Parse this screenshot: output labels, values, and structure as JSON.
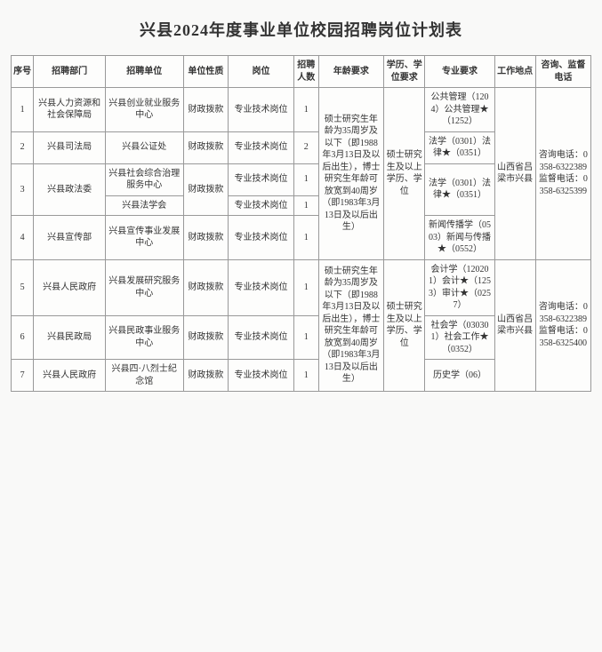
{
  "title": "兴县2024年度事业单位校园招聘岗位计划表",
  "headers": {
    "seq": "序号",
    "dept": "招聘部门",
    "unit": "招聘单位",
    "nature": "单位性质",
    "post": "岗位",
    "count": "招聘人数",
    "age": "年龄要求",
    "degree": "学历、学位要求",
    "major": "专业要求",
    "place": "工作地点",
    "phone": "咨询、监督电话"
  },
  "shared": {
    "nature": "财政拨款",
    "post": "专业技术岗位",
    "age_a": "硕士研究生年龄为35周岁及以下（即1988年3月13日及以后出生），博士研究生年龄可放宽到40周岁（即1983年3月13日及以后出生）",
    "age_b": "硕士研究生年龄为35周岁及以下（即1988年3月13日及以后出生），博士研究生年龄可放宽到40周岁（即1983年3月13日及以后出生）",
    "degree": "硕士研究生及以上学历、学位",
    "place": "山西省吕梁市兴县",
    "phone_a": "咨询电话：0358-6322389 监督电话：0358-6325399",
    "phone_b": "咨询电话：0358-6322389 监督电话：0358-6325400"
  },
  "rows": [
    {
      "seq": "1",
      "dept": "兴县人力资源和社会保障局",
      "unit": "兴县创业就业服务中心",
      "count": "1",
      "major": "公共管理（1204）公共管理★（1252）"
    },
    {
      "seq": "2",
      "dept": "兴县司法局",
      "unit": "兴县公证处",
      "count": "2",
      "major": "法学（0301）法律★（0351）"
    },
    {
      "seq": "3",
      "dept": "兴县政法委",
      "unit_a": "兴县社会综合治理服务中心",
      "count_a": "1",
      "unit_b": "兴县法学会",
      "count_b": "1",
      "major": "法学（0301）法律★（0351）"
    },
    {
      "seq": "4",
      "dept": "兴县宣传部",
      "unit": "兴县宣传事业发展中心",
      "count": "1",
      "major": "新闻传播学（0503）新闻与传播★（0552）"
    },
    {
      "seq": "5",
      "dept": "兴县人民政府",
      "unit": "兴县发展研究服务中心",
      "count": "1",
      "major": "会计学（120201）会计★（1253）审计★（0257）"
    },
    {
      "seq": "6",
      "dept": "兴县民政局",
      "unit": "兴县民政事业服务中心",
      "count": "1",
      "major": "社会学（030301）社会工作★（0352）"
    },
    {
      "seq": "7",
      "dept": "兴县人民政府",
      "unit": "兴县四·八烈士纪念馆",
      "count": "1",
      "major": "历史学（06）"
    }
  ],
  "colors": {
    "border": "#999999",
    "bg": "#fdfdfc",
    "text": "#333333"
  }
}
